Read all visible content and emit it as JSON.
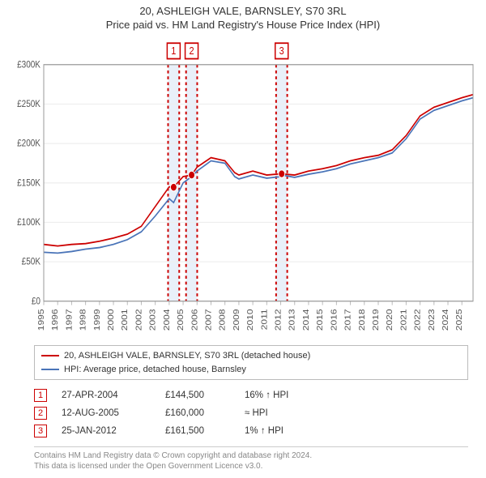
{
  "title": {
    "address": "20, ASHLEIGH VALE, BARNSLEY, S70 3RL",
    "subtitle": "Price paid vs. HM Land Registry's House Price Index (HPI)"
  },
  "chart": {
    "type": "line",
    "background_color": "#ffffff",
    "plot_border_color": "#999999",
    "grid_color": "#eeeeee",
    "tick_color": "#bbbbbb",
    "axis_font_size": 10,
    "x_range": [
      1995,
      2025.8
    ],
    "y_range": [
      0,
      300000
    ],
    "y_ticks": [
      0,
      50000,
      100000,
      150000,
      200000,
      250000,
      300000
    ],
    "y_tick_labels": [
      "£0",
      "£50K",
      "£100K",
      "£150K",
      "£200K",
      "£250K",
      "£300K"
    ],
    "x_ticks": [
      1995,
      1996,
      1997,
      1998,
      1999,
      2000,
      2001,
      2002,
      2003,
      2004,
      2005,
      2006,
      2007,
      2008,
      2009,
      2010,
      2011,
      2012,
      2013,
      2014,
      2015,
      2016,
      2017,
      2018,
      2019,
      2020,
      2021,
      2022,
      2023,
      2024,
      2025
    ],
    "sale_bands": [
      {
        "x": 2004.32,
        "label": "1",
        "color": "#cc0000",
        "band_fill": "#e9f0f9"
      },
      {
        "x": 2005.61,
        "label": "2",
        "color": "#cc0000",
        "band_fill": "#e9f0f9"
      },
      {
        "x": 2012.07,
        "label": "3",
        "color": "#cc0000",
        "band_fill": "#e9f0f9"
      }
    ],
    "sale_points": [
      {
        "x": 2004.32,
        "y": 144500,
        "color": "#cc0000"
      },
      {
        "x": 2005.61,
        "y": 160000,
        "color": "#cc0000"
      },
      {
        "x": 2012.07,
        "y": 161500,
        "color": "#cc0000"
      }
    ],
    "series": [
      {
        "name": "property",
        "label": "20, ASHLEIGH VALE, BARNSLEY, S70 3RL (detached house)",
        "color": "#cc0000",
        "points": [
          [
            1995,
            72000
          ],
          [
            1996,
            70000
          ],
          [
            1997,
            72000
          ],
          [
            1998,
            73000
          ],
          [
            1999,
            76000
          ],
          [
            2000,
            80000
          ],
          [
            2001,
            85000
          ],
          [
            2002,
            95000
          ],
          [
            2003,
            120000
          ],
          [
            2004,
            145000
          ],
          [
            2004.32,
            144500
          ],
          [
            2005,
            158000
          ],
          [
            2005.61,
            160000
          ],
          [
            2006,
            170000
          ],
          [
            2007,
            182000
          ],
          [
            2008,
            178000
          ],
          [
            2008.7,
            163000
          ],
          [
            2009,
            160000
          ],
          [
            2010,
            165000
          ],
          [
            2011,
            160000
          ],
          [
            2012,
            161500
          ],
          [
            2012.07,
            161500
          ],
          [
            2013,
            160000
          ],
          [
            2014,
            165000
          ],
          [
            2015,
            168000
          ],
          [
            2016,
            172000
          ],
          [
            2017,
            178000
          ],
          [
            2018,
            182000
          ],
          [
            2019,
            185000
          ],
          [
            2020,
            192000
          ],
          [
            2021,
            210000
          ],
          [
            2022,
            235000
          ],
          [
            2023,
            246000
          ],
          [
            2024,
            252000
          ],
          [
            2025,
            258000
          ],
          [
            2025.8,
            262000
          ]
        ]
      },
      {
        "name": "hpi",
        "label": "HPI: Average price, detached house, Barnsley",
        "color": "#4a74b8",
        "points": [
          [
            1995,
            62000
          ],
          [
            1996,
            61000
          ],
          [
            1997,
            63000
          ],
          [
            1998,
            66000
          ],
          [
            1999,
            68000
          ],
          [
            2000,
            72000
          ],
          [
            2001,
            78000
          ],
          [
            2002,
            88000
          ],
          [
            2003,
            108000
          ],
          [
            2004,
            130000
          ],
          [
            2004.32,
            125000
          ],
          [
            2005,
            150000
          ],
          [
            2005.61,
            158000
          ],
          [
            2006,
            165000
          ],
          [
            2007,
            178000
          ],
          [
            2008,
            175000
          ],
          [
            2008.7,
            158000
          ],
          [
            2009,
            155000
          ],
          [
            2010,
            160000
          ],
          [
            2011,
            156000
          ],
          [
            2012,
            158000
          ],
          [
            2012.07,
            160000
          ],
          [
            2013,
            157000
          ],
          [
            2014,
            161000
          ],
          [
            2015,
            164000
          ],
          [
            2016,
            168000
          ],
          [
            2017,
            174000
          ],
          [
            2018,
            178000
          ],
          [
            2019,
            182000
          ],
          [
            2020,
            188000
          ],
          [
            2021,
            206000
          ],
          [
            2022,
            231000
          ],
          [
            2023,
            242000
          ],
          [
            2024,
            248000
          ],
          [
            2025,
            254000
          ],
          [
            2025.8,
            258000
          ]
        ]
      }
    ]
  },
  "legend": {
    "items": [
      {
        "color": "#cc0000",
        "text": "20, ASHLEIGH VALE, BARNSLEY, S70 3RL (detached house)"
      },
      {
        "color": "#4a74b8",
        "text": "HPI: Average price, detached house, Barnsley"
      }
    ]
  },
  "sales": [
    {
      "num": "1",
      "color": "#cc0000",
      "date": "27-APR-2004",
      "price": "£144,500",
      "pct": "16% ↑ HPI"
    },
    {
      "num": "2",
      "color": "#cc0000",
      "date": "12-AUG-2005",
      "price": "£160,000",
      "pct": "≈ HPI"
    },
    {
      "num": "3",
      "color": "#cc0000",
      "date": "25-JAN-2012",
      "price": "£161,500",
      "pct": "1% ↑ HPI"
    }
  ],
  "footer": {
    "line1": "Contains HM Land Registry data © Crown copyright and database right 2024.",
    "line2": "This data is licensed under the Open Government Licence v3.0."
  }
}
